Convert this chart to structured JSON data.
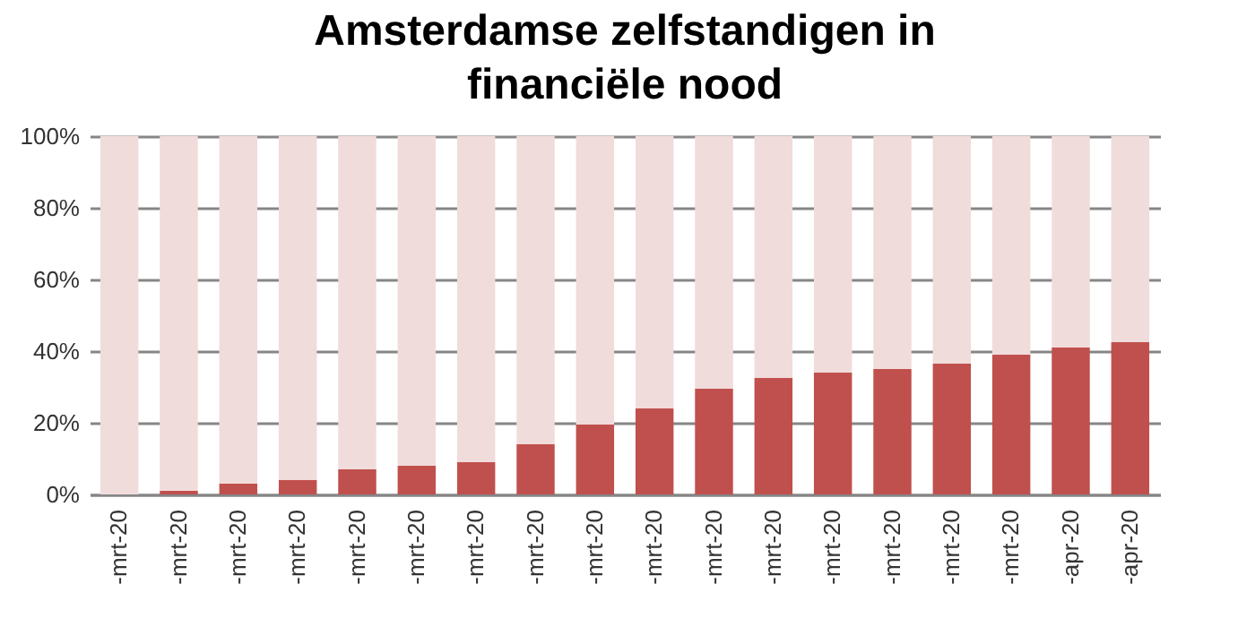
{
  "chart_data": {
    "type": "bar",
    "title": "Amsterdamse zelfstandigen in financiële nood",
    "stacked": true,
    "categories": [
      "-mrt-20",
      "-mrt-20",
      "-mrt-20",
      "-mrt-20",
      "-mrt-20",
      "-mrt-20",
      "-mrt-20",
      "-mrt-20",
      "-mrt-20",
      "-mrt-20",
      "-mrt-20",
      "-mrt-20",
      "-mrt-20",
      "-mrt-20",
      "-mrt-20",
      "-mrt-20",
      "-apr-20",
      "-apr-20"
    ],
    "series": [
      {
        "color": "#c0504d",
        "values": [
          0,
          1,
          3,
          4,
          7,
          8,
          9,
          14,
          19.5,
          24,
          29.5,
          32.5,
          34,
          35,
          36.5,
          39,
          41,
          42.5
        ]
      },
      {
        "color": "#f0dcdb",
        "values": [
          100,
          99,
          97,
          96,
          93,
          92,
          91,
          86,
          80.5,
          76,
          70.5,
          67.5,
          66,
          65,
          63.5,
          61,
          59,
          57.5
        ]
      }
    ],
    "ylim": [
      0,
      100
    ],
    "yticks": [
      {
        "value": 0,
        "label": "0%"
      },
      {
        "value": 20,
        "label": "20%"
      },
      {
        "value": 40,
        "label": "40%"
      },
      {
        "value": 60,
        "label": "60%"
      },
      {
        "value": 80,
        "label": "80%"
      },
      {
        "value": 100,
        "label": "100%"
      }
    ],
    "grid": "y",
    "legend": false
  }
}
